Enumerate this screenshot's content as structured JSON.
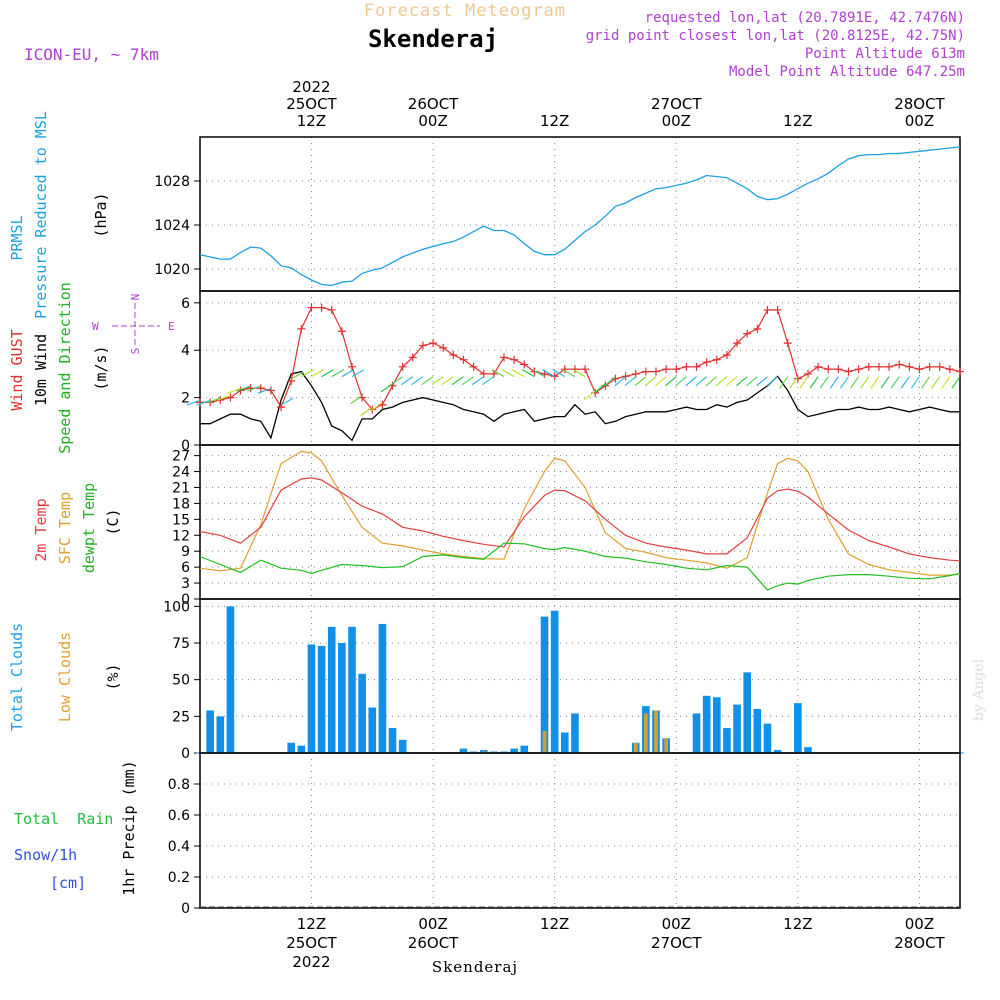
{
  "header": {
    "title": "Forecast Meteogram",
    "location": "Skenderaj",
    "model": "ICON-EU, ~ 7km",
    "requested": "requested lon,lat (20.7891E, 42.7476N)",
    "gridpoint": "grid point closest lon,lat (20.8125E, 42.75N)",
    "point_alt": "Point Altitude 613m",
    "model_alt": "Model Point Altitude 647.25m",
    "footer_name": "Skenderaj",
    "watermark": "by Angel",
    "colors": {
      "title": "#f0c890",
      "info": "#b040d0",
      "location": "#000000"
    }
  },
  "time_axis": {
    "top": [
      {
        "l1": "2022",
        "l2": "25OCT",
        "l3": "12Z"
      },
      {
        "l1": "",
        "l2": "26OCT",
        "l3": "00Z"
      },
      {
        "l1": "",
        "l2": "",
        "l3": "12Z"
      },
      {
        "l1": "",
        "l2": "27OCT",
        "l3": "00Z"
      },
      {
        "l1": "",
        "l2": "",
        "l3": "12Z"
      },
      {
        "l1": "",
        "l2": "28OCT",
        "l3": "00Z"
      }
    ],
    "bottom": [
      {
        "l1": "12Z",
        "l2": "25OCT",
        "l3": "2022"
      },
      {
        "l1": "00Z",
        "l2": "26OCT",
        "l3": ""
      },
      {
        "l1": "12Z",
        "l2": "",
        "l3": ""
      },
      {
        "l1": "00Z",
        "l2": "27OCT",
        "l3": ""
      },
      {
        "l1": "12Z",
        "l2": "",
        "l3": ""
      },
      {
        "l1": "00Z",
        "l2": "28OCT",
        "l3": ""
      }
    ]
  },
  "panel_labels": {
    "pressure": {
      "l1": "PRMSL",
      "l2": "Pressure Reduced to MSL",
      "unit": "(hPa)"
    },
    "wind": {
      "gust": "Wind GUST",
      "wind": "10m Wind",
      "dir": "Speed and Direction",
      "unit": "(m/s)",
      "compass": [
        "N",
        "S",
        "W",
        "E"
      ]
    },
    "temp": {
      "t2m": "2m Temp",
      "sfc": "SFC Temp",
      "dew": "dewpt Temp",
      "unit": "(C)"
    },
    "cloud": {
      "total": "Total Clouds",
      "low": "Low Clouds",
      "unit": "(%)"
    },
    "precip": {
      "rain": "Total  Rain",
      "snow": "Snow/1h",
      "snowunit": "[cm]",
      "axis": "1hr Precip (mm)"
    }
  },
  "colors": {
    "pressure": "#1ca0e0",
    "gust": "#e03030",
    "wind": "#000000",
    "t2m": "#e04040",
    "sfc": "#e0a030",
    "dew": "#20c020",
    "cloud_total": "#1090e8",
    "cloud_low": "#d0a030",
    "rain": "#20c040",
    "snow": "#3050e0",
    "grid": "#888888"
  },
  "chart_data": [
    {
      "type": "line",
      "name": "pressure",
      "x_range_hours": [
        0,
        75
      ],
      "x": [
        0,
        2,
        3,
        4,
        5,
        6,
        7,
        8,
        9,
        10,
        11,
        12,
        13,
        14,
        15,
        16,
        17,
        18,
        19,
        20,
        22,
        24,
        25,
        26,
        27,
        28,
        29,
        30,
        31,
        32,
        33,
        34,
        35,
        36,
        37,
        38,
        39,
        40,
        41,
        42,
        43,
        44,
        45,
        46,
        47,
        48,
        49,
        50,
        51,
        52,
        53,
        54,
        55,
        56,
        57,
        58,
        59,
        60,
        61,
        62,
        63,
        64,
        65,
        66,
        67,
        68,
        69,
        70,
        71,
        72,
        73,
        74,
        75
      ],
      "values": [
        1021.3,
        1020.9,
        1020.9,
        1021.5,
        1022.0,
        1021.9,
        1021.2,
        1020.3,
        1020.1,
        1019.5,
        1019.0,
        1018.6,
        1018.5,
        1018.8,
        1018.9,
        1019.6,
        1019.9,
        1020.1,
        1020.6,
        1021.1,
        1021.8,
        1022.3,
        1022.5,
        1022.9,
        1023.4,
        1023.9,
        1023.5,
        1023.5,
        1023.1,
        1022.3,
        1021.6,
        1021.3,
        1021.3,
        1021.8,
        1022.6,
        1023.4,
        1024.0,
        1024.8,
        1025.7,
        1026.0,
        1026.5,
        1026.9,
        1027.3,
        1027.4,
        1027.6,
        1027.8,
        1028.1,
        1028.5,
        1028.4,
        1028.3,
        1027.8,
        1027.3,
        1026.6,
        1026.3,
        1026.4,
        1026.8,
        1027.3,
        1027.8,
        1028.2,
        1028.7,
        1029.4,
        1030.0,
        1030.3,
        1030.4,
        1030.4,
        1030.5,
        1030.5,
        1030.6,
        1030.7,
        1030.8,
        1030.9,
        1031.0,
        1031.1
      ],
      "ylim": [
        1018,
        1032
      ],
      "yticks": [
        1020,
        1024,
        1028
      ]
    },
    {
      "type": "line",
      "name": "wind",
      "x_range_hours": [
        0,
        75
      ],
      "x": [
        0,
        1,
        2,
        3,
        4,
        5,
        6,
        7,
        8,
        9,
        10,
        11,
        12,
        13,
        14,
        15,
        16,
        17,
        18,
        19,
        20,
        21,
        22,
        23,
        24,
        25,
        26,
        27,
        28,
        29,
        30,
        31,
        32,
        33,
        34,
        35,
        36,
        37,
        38,
        39,
        40,
        41,
        42,
        43,
        44,
        45,
        46,
        47,
        48,
        49,
        50,
        51,
        52,
        53,
        54,
        55,
        56,
        57,
        58,
        59,
        60,
        61,
        62,
        63,
        64,
        65,
        66,
        67,
        68,
        69,
        70,
        71,
        72,
        73,
        74,
        75
      ],
      "gust": [
        1.8,
        1.8,
        1.9,
        2.0,
        2.3,
        2.4,
        2.4,
        2.3,
        1.6,
        2.7,
        4.9,
        5.8,
        5.8,
        5.7,
        4.8,
        3.3,
        2.0,
        1.5,
        1.7,
        2.5,
        3.3,
        3.7,
        4.2,
        4.3,
        4.1,
        3.8,
        3.6,
        3.3,
        3.0,
        3.0,
        3.7,
        3.6,
        3.4,
        3.1,
        3.0,
        2.9,
        3.2,
        3.2,
        3.2,
        2.2,
        2.5,
        2.8,
        2.9,
        3.0,
        3.1,
        3.1,
        3.2,
        3.2,
        3.3,
        3.3,
        3.5,
        3.6,
        3.8,
        4.3,
        4.7,
        4.9,
        5.7,
        5.7,
        4.3,
        2.8,
        3.0,
        3.3,
        3.2,
        3.2,
        3.1,
        3.2,
        3.3,
        3.3,
        3.3,
        3.4,
        3.3,
        3.2,
        3.3,
        3.3,
        3.2,
        3.1
      ],
      "wind": [
        0.9,
        0.9,
        1.1,
        1.3,
        1.3,
        1.1,
        1.0,
        0.3,
        1.9,
        3.0,
        3.1,
        2.5,
        1.8,
        0.8,
        0.6,
        0.2,
        1.1,
        1.1,
        1.5,
        1.6,
        1.8,
        1.9,
        2.0,
        1.9,
        1.8,
        1.7,
        1.5,
        1.4,
        1.3,
        1.0,
        1.3,
        1.4,
        1.5,
        1.0,
        1.1,
        1.2,
        1.2,
        1.7,
        1.3,
        1.4,
        0.9,
        1.0,
        1.2,
        1.3,
        1.4,
        1.4,
        1.4,
        1.5,
        1.6,
        1.5,
        1.5,
        1.7,
        1.6,
        1.8,
        1.9,
        2.2,
        2.5,
        2.9,
        2.3,
        1.5,
        1.2,
        1.3,
        1.4,
        1.5,
        1.5,
        1.6,
        1.5,
        1.5,
        1.6,
        1.5,
        1.4,
        1.5,
        1.6,
        1.5,
        1.4,
        1.4
      ],
      "ylim": [
        0,
        6.5
      ],
      "yticks": [
        0,
        2,
        4,
        6
      ]
    },
    {
      "type": "line",
      "name": "temperature",
      "x_range_hours": [
        0,
        75
      ],
      "x": [
        0,
        2,
        4,
        6,
        8,
        10,
        11,
        12,
        14,
        16,
        18,
        20,
        22,
        24,
        26,
        28,
        30,
        32,
        34,
        35,
        36,
        38,
        40,
        42,
        44,
        46,
        48,
        50,
        52,
        54,
        56,
        57,
        58,
        59,
        60,
        62,
        64,
        66,
        68,
        70,
        72,
        74,
        75
      ],
      "t2m": [
        12.7,
        12.0,
        10.5,
        13.5,
        20.5,
        22.6,
        22.8,
        22.4,
        20.0,
        17.5,
        16.0,
        13.5,
        12.8,
        11.8,
        11.0,
        10.3,
        9.8,
        15.5,
        19.5,
        20.5,
        20.4,
        18.5,
        15.0,
        12.0,
        10.5,
        9.8,
        9.2,
        8.5,
        8.5,
        11.5,
        19.0,
        20.4,
        20.7,
        20.3,
        19.2,
        16.0,
        13.0,
        11.0,
        9.8,
        8.5,
        7.8,
        7.3,
        7.2
      ],
      "sfc": [
        5.8,
        5.3,
        5.8,
        14.0,
        25.5,
        27.8,
        27.5,
        26.0,
        19.5,
        13.5,
        10.5,
        10.0,
        9.2,
        8.5,
        8.0,
        7.6,
        7.5,
        17.0,
        24.0,
        26.5,
        26.0,
        21.0,
        12.5,
        9.5,
        8.8,
        7.8,
        7.3,
        6.8,
        5.8,
        7.8,
        20.0,
        25.5,
        26.5,
        26.0,
        24.0,
        15.0,
        8.5,
        6.5,
        5.5,
        5.0,
        4.5,
        4.5,
        4.7
      ],
      "dew": [
        8.0,
        6.5,
        5.0,
        7.3,
        5.8,
        5.4,
        4.8,
        5.4,
        6.5,
        6.3,
        5.9,
        6.1,
        8.0,
        8.3,
        7.8,
        7.5,
        10.5,
        10.4,
        9.5,
        9.3,
        9.7,
        9.0,
        8.0,
        7.7,
        7.0,
        6.5,
        5.8,
        5.5,
        6.3,
        6.0,
        1.7,
        2.5,
        3.0,
        2.8,
        3.5,
        4.3,
        4.6,
        4.6,
        4.3,
        3.9,
        3.8,
        4.4,
        4.8
      ],
      "ylim": [
        0,
        29
      ],
      "yticks": [
        0,
        3,
        6,
        9,
        12,
        15,
        18,
        21,
        24,
        27
      ]
    },
    {
      "type": "bar",
      "name": "clouds",
      "x_range_hours": [
        0,
        75
      ],
      "x": [
        0,
        1,
        2,
        3,
        4,
        5,
        6,
        7,
        8,
        9,
        10,
        11,
        12,
        13,
        14,
        15,
        16,
        17,
        18,
        19,
        20,
        21,
        22,
        23,
        24,
        25,
        26,
        27,
        28,
        29,
        30,
        31,
        32,
        33,
        34,
        35,
        36,
        37,
        38,
        39,
        40,
        41,
        42,
        43,
        44,
        45,
        46,
        47,
        48,
        49,
        50,
        51,
        52,
        53,
        54,
        55,
        56,
        57,
        58,
        59,
        60,
        61,
        62,
        63,
        64,
        65,
        66,
        67,
        68,
        69,
        70,
        71,
        72,
        73,
        74,
        75
      ],
      "total": [
        0,
        29,
        25,
        100,
        0,
        0,
        0,
        0,
        0,
        7,
        5,
        74,
        73,
        86,
        75,
        86,
        54,
        31,
        88,
        17,
        9,
        0,
        0,
        0,
        0,
        0,
        3,
        1,
        2,
        1,
        1,
        3,
        5,
        0,
        93,
        97,
        14,
        27,
        0,
        0,
        0,
        0,
        0,
        7,
        32,
        29,
        10,
        0,
        0,
        27,
        39,
        38,
        17,
        33,
        55,
        30,
        20,
        2,
        0,
        34,
        4,
        0,
        0,
        0,
        0,
        0,
        0,
        0,
        0,
        0,
        0,
        0,
        0,
        0,
        0,
        0
      ],
      "low": [
        0,
        0,
        0,
        0,
        0,
        0,
        0,
        0,
        0,
        0,
        0,
        0,
        0,
        0,
        0,
        0,
        0,
        0,
        0,
        0,
        0,
        0,
        0,
        0,
        0,
        0,
        0,
        0,
        1,
        0,
        0,
        0,
        0,
        0,
        15,
        0,
        0,
        0,
        0,
        0,
        0,
        0,
        0,
        7,
        27,
        29,
        10,
        0,
        0,
        0,
        0,
        0,
        0,
        0,
        0,
        0,
        0,
        0,
        0,
        0,
        0,
        0,
        0,
        0,
        0,
        0,
        0,
        0,
        0,
        0,
        0,
        0,
        0,
        0,
        0,
        0
      ],
      "ylim": [
        0,
        105
      ],
      "yticks": [
        0,
        25,
        50,
        75,
        100
      ]
    },
    {
      "type": "bar",
      "name": "precipitation",
      "x_range_hours": [
        0,
        75
      ],
      "values": [],
      "ylim": [
        0,
        1.0
      ],
      "yticks": [
        0,
        0.2,
        0.4,
        0.6,
        0.8
      ]
    }
  ]
}
